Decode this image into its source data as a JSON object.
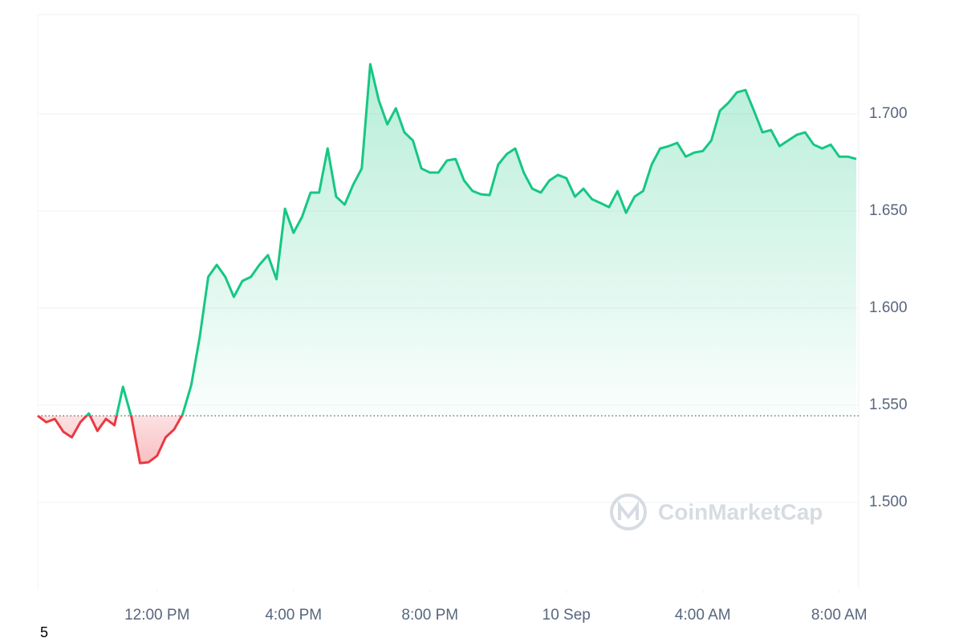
{
  "chart_data": {
    "type": "line",
    "x": [
      8.5,
      8.75,
      9,
      9.25,
      9.5,
      9.75,
      10,
      10.25,
      10.5,
      10.75,
      11,
      11.25,
      11.5,
      11.75,
      12,
      12.25,
      12.5,
      12.75,
      13,
      13.25,
      13.5,
      13.75,
      14,
      14.25,
      14.5,
      14.75,
      15,
      15.25,
      15.5,
      15.75,
      16,
      16.25,
      16.5,
      16.75,
      17,
      17.25,
      17.5,
      17.75,
      18,
      18.25,
      18.5,
      18.75,
      19,
      19.25,
      19.5,
      19.75,
      20,
      20.25,
      20.5,
      20.75,
      21,
      21.25,
      21.5,
      21.75,
      22,
      22.25,
      22.5,
      22.75,
      23,
      23.25,
      23.5,
      23.75,
      24,
      24.25,
      24.5,
      24.75,
      25,
      25.25,
      25.5,
      25.75,
      26,
      26.25,
      26.5,
      26.75,
      27,
      27.25,
      27.5,
      27.75,
      28,
      28.25,
      28.5,
      28.75,
      29,
      29.25,
      29.5,
      29.75,
      30,
      30.25,
      30.5,
      30.75,
      31,
      31.25,
      31.5,
      31.75,
      32,
      32.25,
      32.5
    ],
    "values": [
      1.5446,
      1.5413,
      1.543,
      1.5364,
      1.5335,
      1.5413,
      1.5458,
      1.5368,
      1.543,
      1.5397,
      1.5595,
      1.5438,
      1.5202,
      1.5207,
      1.524,
      1.5335,
      1.5376,
      1.5454,
      1.5603,
      1.5851,
      1.6161,
      1.6223,
      1.6161,
      1.6058,
      1.614,
      1.6161,
      1.6223,
      1.6273,
      1.6149,
      1.6512,
      1.6388,
      1.647,
      1.6595,
      1.6595,
      1.6822,
      1.6574,
      1.6533,
      1.6636,
      1.6719,
      1.7256,
      1.707,
      1.6946,
      1.7029,
      1.6905,
      1.6863,
      1.6719,
      1.6698,
      1.6698,
      1.676,
      1.6768,
      1.6657,
      1.6603,
      1.6586,
      1.6582,
      1.6739,
      1.6793,
      1.6822,
      1.6698,
      1.6615,
      1.6595,
      1.6657,
      1.6686,
      1.6669,
      1.6574,
      1.6615,
      1.6561,
      1.6541,
      1.652,
      1.6603,
      1.6491,
      1.6574,
      1.6603,
      1.6739,
      1.6822,
      1.6834,
      1.6851,
      1.678,
      1.6801,
      1.6809,
      1.6863,
      1.7016,
      1.7057,
      1.7111,
      1.7123,
      1.7016,
      1.6905,
      1.6917,
      1.6834,
      1.6863,
      1.6892,
      1.6905,
      1.6842,
      1.6822,
      1.6842,
      1.678,
      1.678,
      1.6768
    ],
    "baseline": 1.5446,
    "up_color": "#16c784",
    "down_color": "#ea3943",
    "xlim": [
      8.5,
      32.57
    ],
    "xticks": [
      {
        "value": 12,
        "label": "12:00 PM"
      },
      {
        "value": 16,
        "label": "4:00 PM"
      },
      {
        "value": 20,
        "label": "8:00 PM"
      },
      {
        "value": 24,
        "label": "10 Sep"
      },
      {
        "value": 28,
        "label": "4:00 AM"
      },
      {
        "value": 32,
        "label": "8:00 AM"
      }
    ],
    "ylim": [
      1.455,
      1.7512
    ],
    "yticks": [
      {
        "value": 1.5,
        "label": "1.500"
      },
      {
        "value": 1.55,
        "label": "1.550"
      },
      {
        "value": 1.6,
        "label": "1.600"
      },
      {
        "value": 1.65,
        "label": "1.650"
      },
      {
        "value": 1.7,
        "label": "1.700"
      }
    ],
    "grid": true,
    "watermark": "CoinMarketCap",
    "footnote": "5"
  }
}
